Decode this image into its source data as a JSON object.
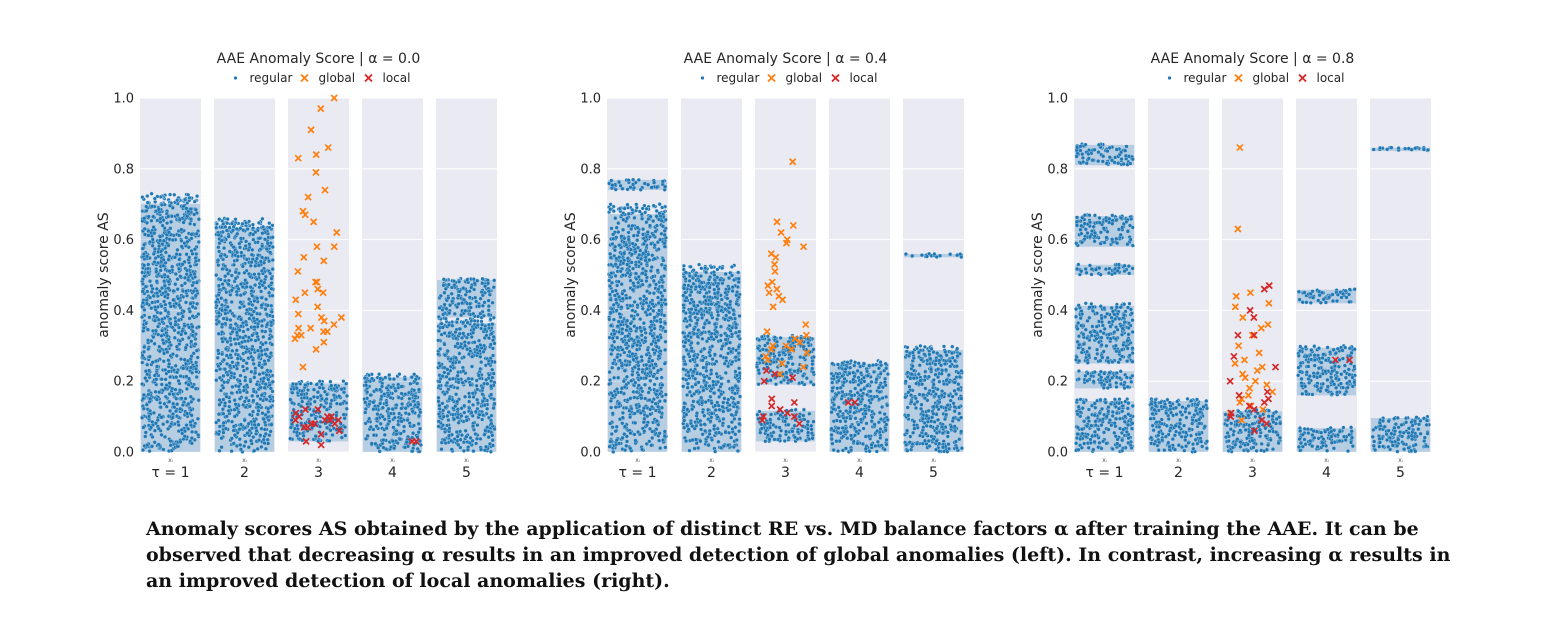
{
  "caption": "Anomaly scores AS obtained by the application of distinct RE vs. MD balance factors α after training the AAE. It can be observed that decreasing α results in an improved detection of global anomalies (left). In contrast, increasing α results in an improved detection of local anomalies (right).",
  "colors": {
    "regular": "#1f77b4",
    "global": "#ff7f0e",
    "local": "#d62728",
    "panel_bg": "#eaeaf2"
  },
  "chart_data": [
    {
      "type": "scatter",
      "title": "AAE Anomaly Score | α = 0.0",
      "ylabel": "anomaly score AS",
      "ylim": [
        0,
        1
      ],
      "yticks": [
        "0.0",
        "0.2",
        "0.4",
        "0.6",
        "0.8",
        "1.0"
      ],
      "categories": [
        "τ = 1",
        "2",
        "3",
        "4",
        "5"
      ],
      "category_sublabel": "xᵢ",
      "legend": [
        "regular",
        "global",
        "local"
      ],
      "series": [
        {
          "name": "regular",
          "density_bands": [
            [
              [
                0,
                0.73
              ]
            ],
            [
              [
                0,
                0.66
              ]
            ],
            [
              [
                0.03,
                0.2
              ]
            ],
            [
              [
                0,
                0.22
              ]
            ],
            [
              [
                0,
                0.38
              ],
              [
                0.38,
                0.49
              ]
            ]
          ]
        },
        {
          "name": "global",
          "values": [
            [],
            [],
            [
              0.24,
              0.29,
              0.31,
              0.32,
              0.33,
              0.33,
              0.34,
              0.34,
              0.35,
              0.35,
              0.36,
              0.37,
              0.38,
              0.38,
              0.39,
              0.41,
              0.43,
              0.45,
              0.45,
              0.46,
              0.48,
              0.48,
              0.51,
              0.54,
              0.55,
              0.58,
              0.58,
              0.62,
              0.65,
              0.67,
              0.68,
              0.72,
              0.74,
              0.79,
              0.83,
              0.84,
              0.86,
              0.91,
              0.97,
              1.0
            ],
            [],
            []
          ]
        },
        {
          "name": "local",
          "values": [
            [],
            [],
            [
              0.02,
              0.03,
              0.05,
              0.06,
              0.07,
              0.07,
              0.08,
              0.08,
              0.08,
              0.09,
              0.09,
              0.09,
              0.09,
              0.1,
              0.1,
              0.1,
              0.11,
              0.12,
              0.12
            ],
            [
              0.03,
              0.03
            ],
            []
          ]
        }
      ]
    },
    {
      "type": "scatter",
      "title": "AAE Anomaly Score | α = 0.4",
      "ylabel": "anomaly score AS",
      "ylim": [
        0,
        1
      ],
      "yticks": [
        "0.0",
        "0.2",
        "0.4",
        "0.6",
        "0.8",
        "1.0"
      ],
      "categories": [
        "τ = 1",
        "2",
        "3",
        "4",
        "5"
      ],
      "category_sublabel": "xᵢ",
      "legend": [
        "regular",
        "global",
        "local"
      ],
      "series": [
        {
          "name": "regular",
          "density_bands": [
            [
              [
                0,
                0.7
              ],
              [
                0.74,
                0.77
              ]
            ],
            [
              [
                0,
                0.53
              ]
            ],
            [
              [
                0.03,
                0.12
              ],
              [
                0.19,
                0.33
              ]
            ],
            [
              [
                0,
                0.26
              ]
            ],
            [
              [
                0,
                0.3
              ],
              [
                0.55,
                0.56
              ]
            ]
          ]
        },
        {
          "name": "global",
          "values": [
            [],
            [],
            [
              0.22,
              0.24,
              0.25,
              0.26,
              0.27,
              0.28,
              0.29,
              0.29,
              0.3,
              0.3,
              0.31,
              0.32,
              0.33,
              0.34,
              0.36,
              0.41,
              0.43,
              0.44,
              0.45,
              0.46,
              0.47,
              0.48,
              0.51,
              0.53,
              0.55,
              0.56,
              0.58,
              0.59,
              0.6,
              0.62,
              0.64,
              0.65,
              0.82
            ],
            [],
            []
          ]
        },
        {
          "name": "local",
          "values": [
            [],
            [],
            [
              0.08,
              0.09,
              0.1,
              0.1,
              0.11,
              0.12,
              0.13,
              0.14,
              0.15,
              0.2,
              0.21,
              0.22,
              0.23
            ],
            [
              0.14,
              0.14
            ],
            []
          ]
        }
      ]
    },
    {
      "type": "scatter",
      "title": "AAE Anomaly Score | α = 0.8",
      "ylabel": "anomaly score AS",
      "ylim": [
        0,
        1
      ],
      "yticks": [
        "0.0",
        "0.2",
        "0.4",
        "0.6",
        "0.8",
        "1.0"
      ],
      "categories": [
        "τ = 1",
        "2",
        "3",
        "4",
        "5"
      ],
      "category_sublabel": "xᵢ",
      "legend": [
        "regular",
        "global",
        "local"
      ],
      "series": [
        {
          "name": "regular",
          "density_bands": [
            [
              [
                0,
                0.15
              ],
              [
                0.18,
                0.23
              ],
              [
                0.25,
                0.42
              ],
              [
                0.5,
                0.53
              ],
              [
                0.58,
                0.67
              ],
              [
                0.81,
                0.87
              ]
            ],
            [
              [
                0,
                0.15
              ]
            ],
            [
              [
                0,
                0.12
              ]
            ],
            [
              [
                0,
                0.07
              ],
              [
                0.16,
                0.3
              ],
              [
                0.42,
                0.46
              ]
            ],
            [
              [
                0,
                0.1
              ],
              [
                0.85,
                0.86
              ]
            ]
          ]
        },
        {
          "name": "global",
          "values": [
            [],
            [],
            [
              0.09,
              0.11,
              0.12,
              0.13,
              0.14,
              0.15,
              0.16,
              0.17,
              0.18,
              0.19,
              0.2,
              0.21,
              0.22,
              0.23,
              0.24,
              0.25,
              0.26,
              0.28,
              0.3,
              0.33,
              0.35,
              0.36,
              0.38,
              0.41,
              0.42,
              0.44,
              0.45,
              0.63,
              0.86
            ],
            [],
            []
          ]
        },
        {
          "name": "local",
          "values": [
            [],
            [],
            [
              0.06,
              0.08,
              0.09,
              0.1,
              0.11,
              0.12,
              0.13,
              0.14,
              0.15,
              0.16,
              0.17,
              0.2,
              0.24,
              0.27,
              0.33,
              0.33,
              0.38,
              0.4,
              0.46,
              0.47
            ],
            [
              0.26,
              0.26
            ],
            []
          ]
        }
      ]
    }
  ]
}
